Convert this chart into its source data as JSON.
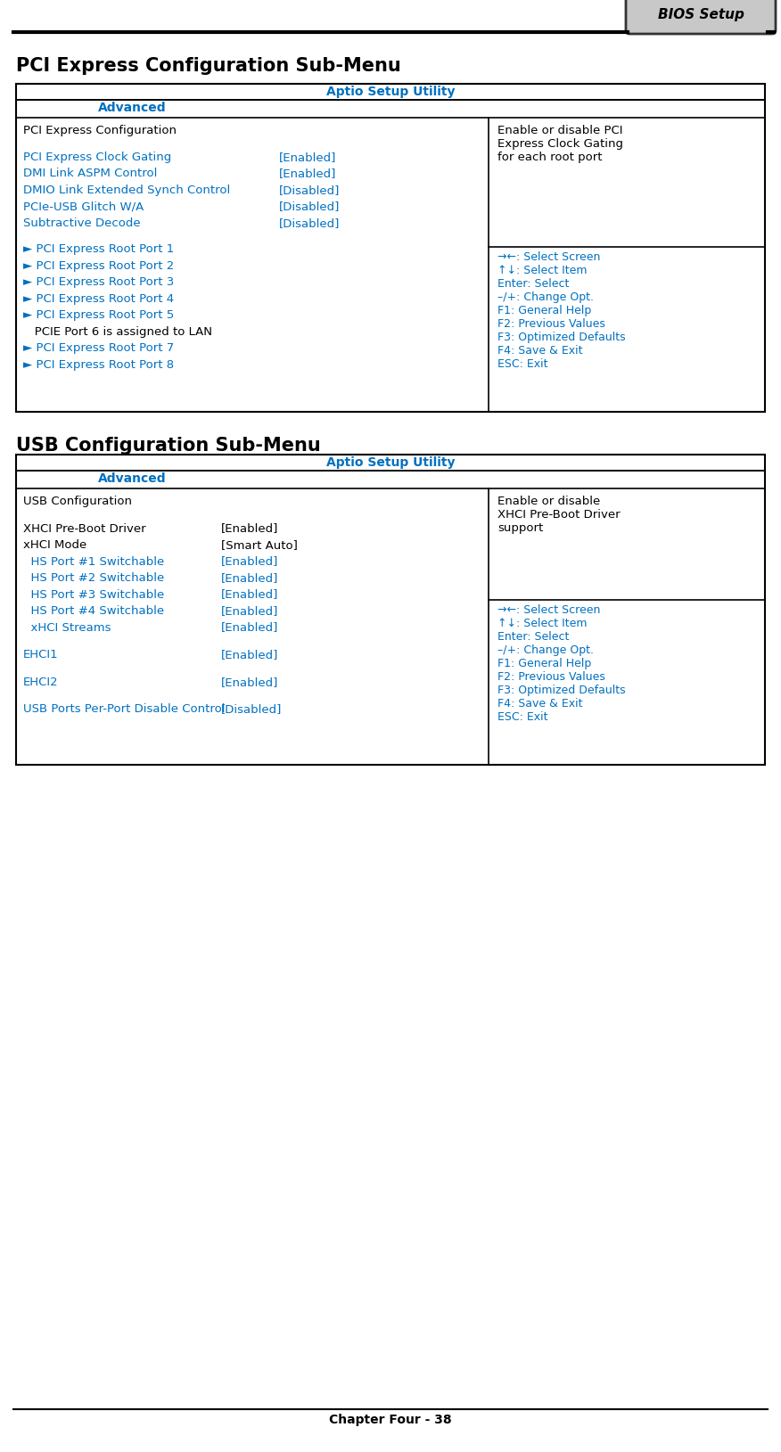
{
  "bg_color": "#ffffff",
  "text_color_black": "#000000",
  "text_color_blue": "#0070C0",
  "border_color": "#000000",
  "bios_label": "BIOS Setup",
  "section1_title": "PCI Express Configuration Sub-Menu",
  "section2_title": "USB Configuration Sub-Menu",
  "aptio_header": "Aptio Setup Utility",
  "advanced_label": "Advanced",
  "table1_left_col": [
    {
      "text": "PCI Express Configuration",
      "color": "#000000",
      "indent": 0
    },
    {
      "text": "",
      "color": "#000000",
      "indent": 0
    },
    {
      "text": "PCI Express Clock Gating",
      "color": "#0070C0",
      "indent": 0,
      "value": "[Enabled]"
    },
    {
      "text": "DMI Link ASPM Control",
      "color": "#0070C0",
      "indent": 0,
      "value": "[Enabled]"
    },
    {
      "text": "DMIO Link Extended Synch Control",
      "color": "#0070C0",
      "indent": 0,
      "value": "[Disabled]"
    },
    {
      "text": "PCIe-USB Glitch W/A",
      "color": "#0070C0",
      "indent": 0,
      "value": "[Disabled]"
    },
    {
      "text": "Subtractive Decode",
      "color": "#0070C0",
      "indent": 0,
      "value": "[Disabled]"
    },
    {
      "text": "",
      "color": "#000000",
      "indent": 0
    },
    {
      "text": "► PCI Express Root Port 1",
      "color": "#0070C0",
      "indent": 0
    },
    {
      "text": "► PCI Express Root Port 2",
      "color": "#0070C0",
      "indent": 0
    },
    {
      "text": "► PCI Express Root Port 3",
      "color": "#0070C0",
      "indent": 0
    },
    {
      "text": "► PCI Express Root Port 4",
      "color": "#0070C0",
      "indent": 0
    },
    {
      "text": "► PCI Express Root Port 5",
      "color": "#0070C0",
      "indent": 0
    },
    {
      "text": "   PCIE Port 6 is assigned to LAN",
      "color": "#000000",
      "indent": 0
    },
    {
      "text": "► PCI Express Root Port 7",
      "color": "#0070C0",
      "indent": 0
    },
    {
      "text": "► PCI Express Root Port 8",
      "color": "#0070C0",
      "indent": 0
    }
  ],
  "table1_right_top": "Enable or disable PCI\nExpress Clock Gating\nfor each root port",
  "table1_right_bottom": "→←: Select Screen\n↑↓: Select Item\nEnter: Select\n–/+: Change Opt.\nF1: General Help\nF2: Previous Values\nF3: Optimized Defaults\nF4: Save & Exit\nESC: Exit",
  "table2_left_col": [
    {
      "text": "USB Configuration",
      "color": "#000000",
      "indent": 0
    },
    {
      "text": "",
      "color": "#000000",
      "indent": 0
    },
    {
      "text": "XHCI Pre-Boot Driver",
      "color": "#000000",
      "indent": 0,
      "value": "[Enabled]"
    },
    {
      "text": "xHCI Mode",
      "color": "#000000",
      "indent": 0,
      "value": "[Smart Auto]"
    },
    {
      "text": "  HS Port #1 Switchable",
      "color": "#0070C0",
      "indent": 1,
      "value": "[Enabled]"
    },
    {
      "text": "  HS Port #2 Switchable",
      "color": "#0070C0",
      "indent": 1,
      "value": "[Enabled]"
    },
    {
      "text": "  HS Port #3 Switchable",
      "color": "#0070C0",
      "indent": 1,
      "value": "[Enabled]"
    },
    {
      "text": "  HS Port #4 Switchable",
      "color": "#0070C0",
      "indent": 1,
      "value": "[Enabled]"
    },
    {
      "text": "  xHCI Streams",
      "color": "#0070C0",
      "indent": 1,
      "value": "[Enabled]"
    },
    {
      "text": "",
      "color": "#000000",
      "indent": 0
    },
    {
      "text": "EHCI1",
      "color": "#0070C0",
      "indent": 0,
      "value": "[Enabled]"
    },
    {
      "text": "",
      "color": "#000000",
      "indent": 0
    },
    {
      "text": "EHCI2",
      "color": "#0070C0",
      "indent": 0,
      "value": "[Enabled]"
    },
    {
      "text": "",
      "color": "#000000",
      "indent": 0
    },
    {
      "text": "USB Ports Per-Port Disable Control",
      "color": "#0070C0",
      "indent": 0,
      "value": "[Disabled]"
    }
  ],
  "table2_right_top": "Enable or disable\nXHCI Pre-Boot Driver\nsupport",
  "table2_right_bottom": "→←: Select Screen\n↑↓: Select Item\nEnter: Select\n–/+: Change Opt.\nF1: General Help\nF2: Previous Values\nF3: Optimized Defaults\nF4: Save & Exit\nESC: Exit",
  "footer": "Chapter Four - 38"
}
